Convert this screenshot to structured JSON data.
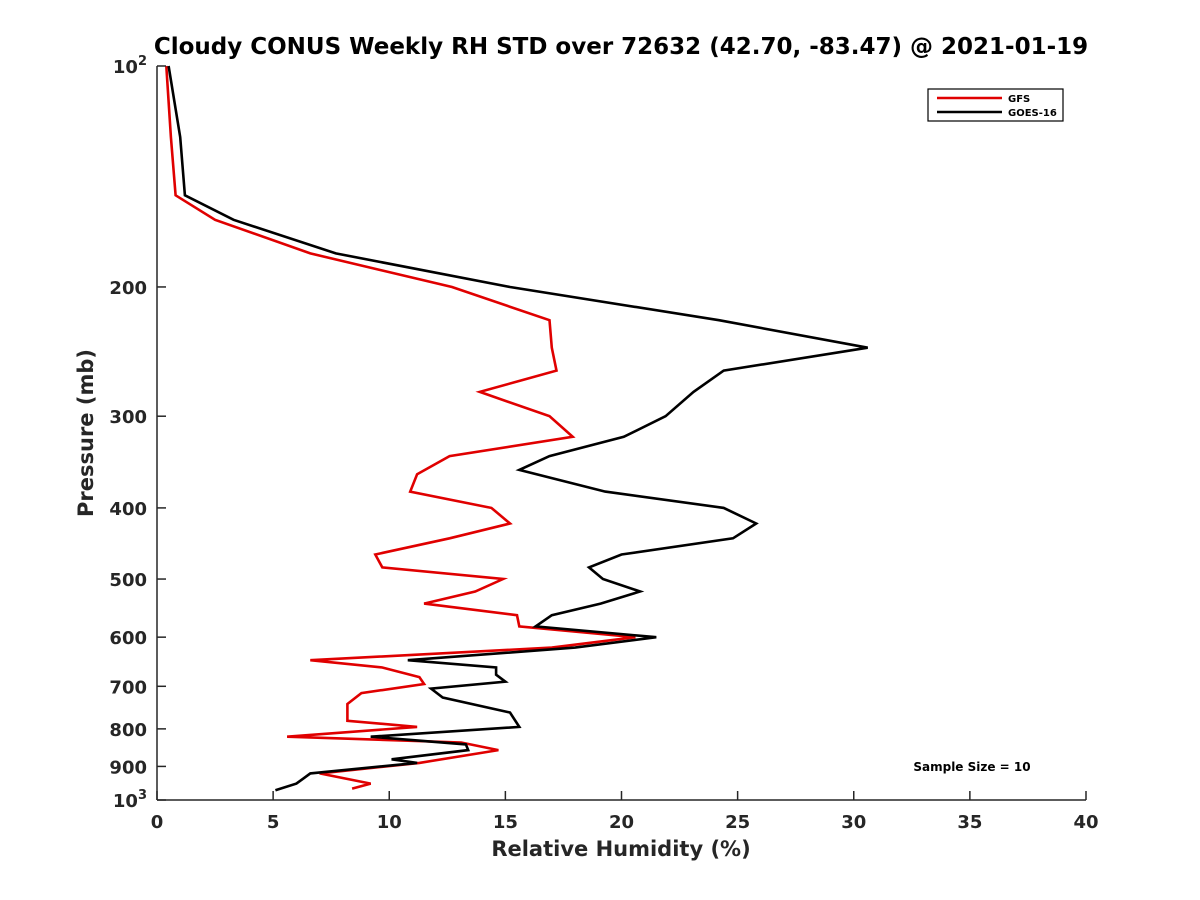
{
  "chart_data": {
    "type": "line",
    "title": "Cloudy CONUS Weekly RH STD over 72632 (42.70, -83.47) @ 2021-01-19",
    "xlabel": "Relative Humidity (%)",
    "ylabel": "Pressure (mb)",
    "xlim": [
      0,
      40
    ],
    "ylim": [
      100,
      1000
    ],
    "y_scale": "log",
    "y_reversed": true,
    "grid": false,
    "legend_position": "top-right",
    "x_ticks": [
      0,
      5,
      10,
      15,
      20,
      25,
      30,
      35,
      40
    ],
    "y_ticks": [
      100,
      200,
      300,
      400,
      500,
      600,
      700,
      800,
      900,
      1000
    ],
    "y_tick_labels": [
      {
        "base": "10",
        "exp": "2"
      },
      {
        "base": "200",
        "exp": ""
      },
      {
        "base": "300",
        "exp": ""
      },
      {
        "base": "400",
        "exp": ""
      },
      {
        "base": "500",
        "exp": ""
      },
      {
        "base": "600",
        "exp": ""
      },
      {
        "base": "700",
        "exp": ""
      },
      {
        "base": "800",
        "exp": ""
      },
      {
        "base": "900",
        "exp": ""
      },
      {
        "base": "10",
        "exp": "3"
      }
    ],
    "annotation": "Sample Size = 10",
    "series": [
      {
        "name": "GFS",
        "color": "#e00000",
        "points": [
          [
            0.4,
            100
          ],
          [
            0.6,
            125
          ],
          [
            0.8,
            150
          ],
          [
            2.5,
            162
          ],
          [
            6.6,
            180
          ],
          [
            12.7,
            200
          ],
          [
            16.9,
            222
          ],
          [
            17.0,
            242
          ],
          [
            17.2,
            260
          ],
          [
            13.9,
            278
          ],
          [
            16.9,
            300
          ],
          [
            17.9,
            320
          ],
          [
            12.6,
            340
          ],
          [
            11.2,
            360
          ],
          [
            10.9,
            380
          ],
          [
            14.4,
            400
          ],
          [
            15.2,
            420
          ],
          [
            12.6,
            440
          ],
          [
            9.4,
            463
          ],
          [
            9.7,
            482
          ],
          [
            14.9,
            500
          ],
          [
            13.7,
            520
          ],
          [
            11.5,
            540
          ],
          [
            15.5,
            560
          ],
          [
            15.6,
            580
          ],
          [
            20.6,
            600
          ],
          [
            17.0,
            620
          ],
          [
            6.6,
            645
          ],
          [
            9.7,
            660
          ],
          [
            11.3,
            680
          ],
          [
            11.5,
            695
          ],
          [
            8.8,
            715
          ],
          [
            8.2,
            740
          ],
          [
            8.2,
            780
          ],
          [
            11.2,
            795
          ],
          [
            5.6,
            820
          ],
          [
            13.1,
            835
          ],
          [
            14.7,
            855
          ],
          [
            11.3,
            890
          ],
          [
            7.0,
            920
          ],
          [
            9.2,
            950
          ],
          [
            8.4,
            965
          ]
        ]
      },
      {
        "name": "GOES-16",
        "color": "#000000",
        "points": [
          [
            0.5,
            100
          ],
          [
            1.0,
            125
          ],
          [
            1.2,
            150
          ],
          [
            3.3,
            162
          ],
          [
            7.7,
            180
          ],
          [
            15.2,
            200
          ],
          [
            24.2,
            222
          ],
          [
            30.6,
            242
          ],
          [
            24.4,
            260
          ],
          [
            23.1,
            278
          ],
          [
            21.9,
            300
          ],
          [
            20.1,
            320
          ],
          [
            16.9,
            340
          ],
          [
            15.6,
            355
          ],
          [
            19.3,
            380
          ],
          [
            24.4,
            400
          ],
          [
            25.8,
            420
          ],
          [
            24.8,
            440
          ],
          [
            20.0,
            463
          ],
          [
            18.6,
            482
          ],
          [
            19.2,
            500
          ],
          [
            20.8,
            520
          ],
          [
            19.1,
            540
          ],
          [
            17.0,
            560
          ],
          [
            16.3,
            580
          ],
          [
            21.5,
            600
          ],
          [
            18.0,
            620
          ],
          [
            10.8,
            645
          ],
          [
            14.6,
            660
          ],
          [
            14.6,
            675
          ],
          [
            15.0,
            690
          ],
          [
            11.8,
            705
          ],
          [
            12.3,
            725
          ],
          [
            15.2,
            760
          ],
          [
            15.6,
            795
          ],
          [
            9.2,
            820
          ],
          [
            13.3,
            840
          ],
          [
            13.4,
            855
          ],
          [
            10.1,
            880
          ],
          [
            11.2,
            890
          ],
          [
            6.6,
            920
          ],
          [
            6.3,
            935
          ],
          [
            6.0,
            950
          ],
          [
            5.1,
            970
          ]
        ]
      }
    ]
  }
}
